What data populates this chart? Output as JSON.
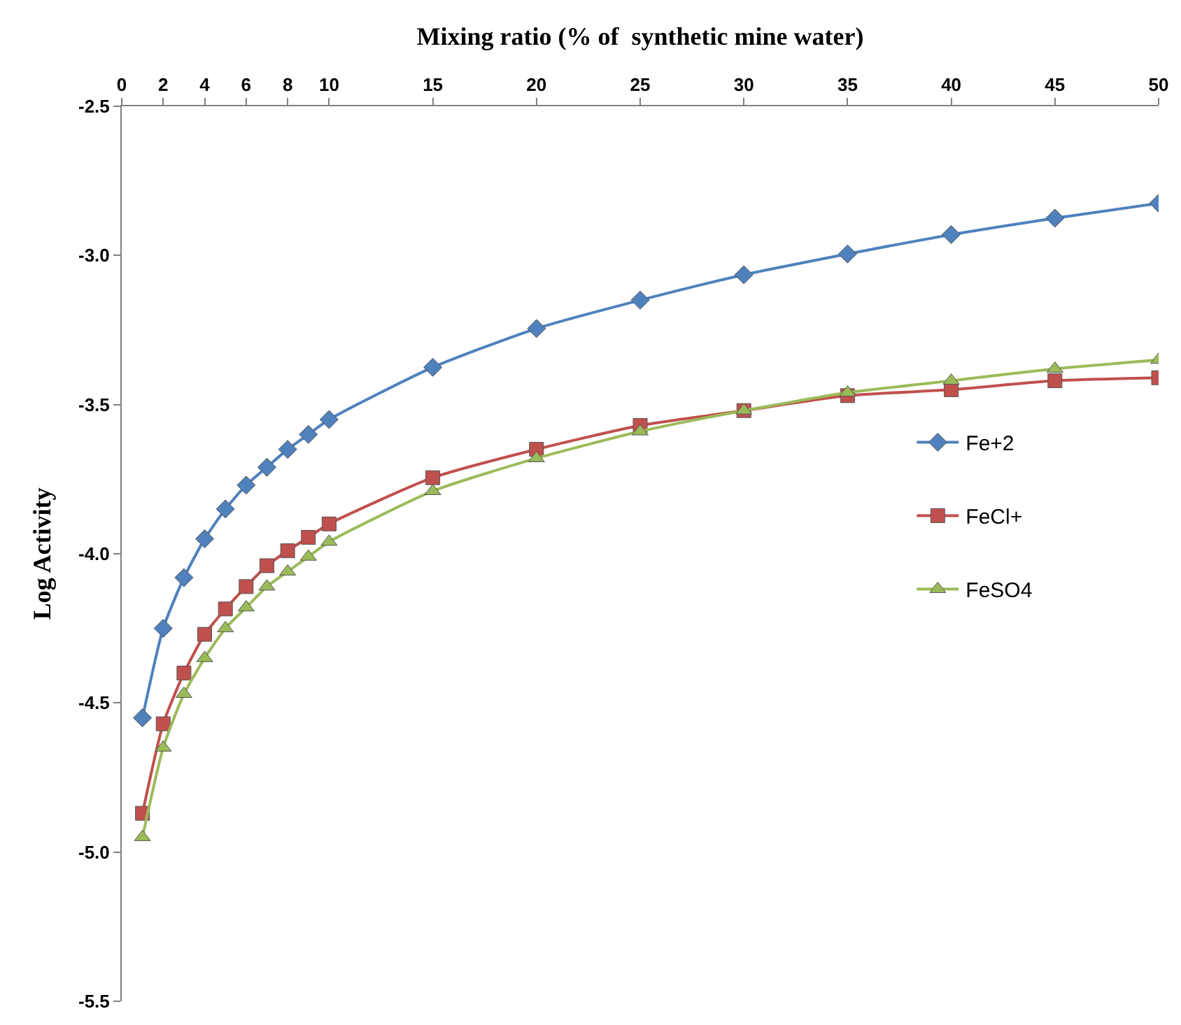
{
  "chart_data": {
    "type": "line",
    "xlabel": "Mixing ratio (% of  synthetic mine water)",
    "ylabel": "Log Activity",
    "x": [
      1,
      2,
      3,
      4,
      5,
      6,
      7,
      8,
      9,
      10,
      15,
      20,
      25,
      30,
      35,
      40,
      45,
      50
    ],
    "series": [
      {
        "name": "Fe+2",
        "color": "#4f81bd",
        "marker": "diamond",
        "values": [
          -4.55,
          -4.25,
          -4.08,
          -3.95,
          -3.85,
          -3.77,
          -3.71,
          -3.65,
          -3.6,
          -3.55,
          -3.375,
          -3.245,
          -3.15,
          -3.065,
          -2.995,
          -2.93,
          -2.875,
          -2.825
        ]
      },
      {
        "name": "FeCl+",
        "color": "#c0504d",
        "marker": "square",
        "values": [
          -4.87,
          -4.57,
          -4.4,
          -4.27,
          -4.185,
          -4.11,
          -4.04,
          -3.99,
          -3.945,
          -3.9,
          -3.745,
          -3.65,
          -3.57,
          -3.52,
          -3.47,
          -3.45,
          -3.42,
          -3.41
        ]
      },
      {
        "name": "FeSO4",
        "color": "#9bbb59",
        "marker": "triangle",
        "values": [
          -4.95,
          -4.65,
          -4.47,
          -4.35,
          -4.25,
          -4.18,
          -4.11,
          -4.06,
          -4.01,
          -3.96,
          -3.79,
          -3.68,
          -3.59,
          -3.52,
          -3.46,
          -3.42,
          -3.38,
          -3.35
        ]
      }
    ],
    "xlim": [
      0,
      50
    ],
    "xticks": [
      0,
      2,
      4,
      6,
      8,
      10,
      15,
      20,
      25,
      30,
      35,
      40,
      45,
      50
    ],
    "ylim": [
      -5.5,
      -2.5
    ],
    "yticks": [
      -2.5,
      {
        "value": -3,
        "label": "-3.0"
      },
      -3.5,
      {
        "value": -4,
        "label": "-4.0"
      },
      -4.5,
      {
        "value": -5,
        "label": "-5.0"
      },
      -5.5
    ],
    "legend": "right",
    "line_style": "solid"
  }
}
